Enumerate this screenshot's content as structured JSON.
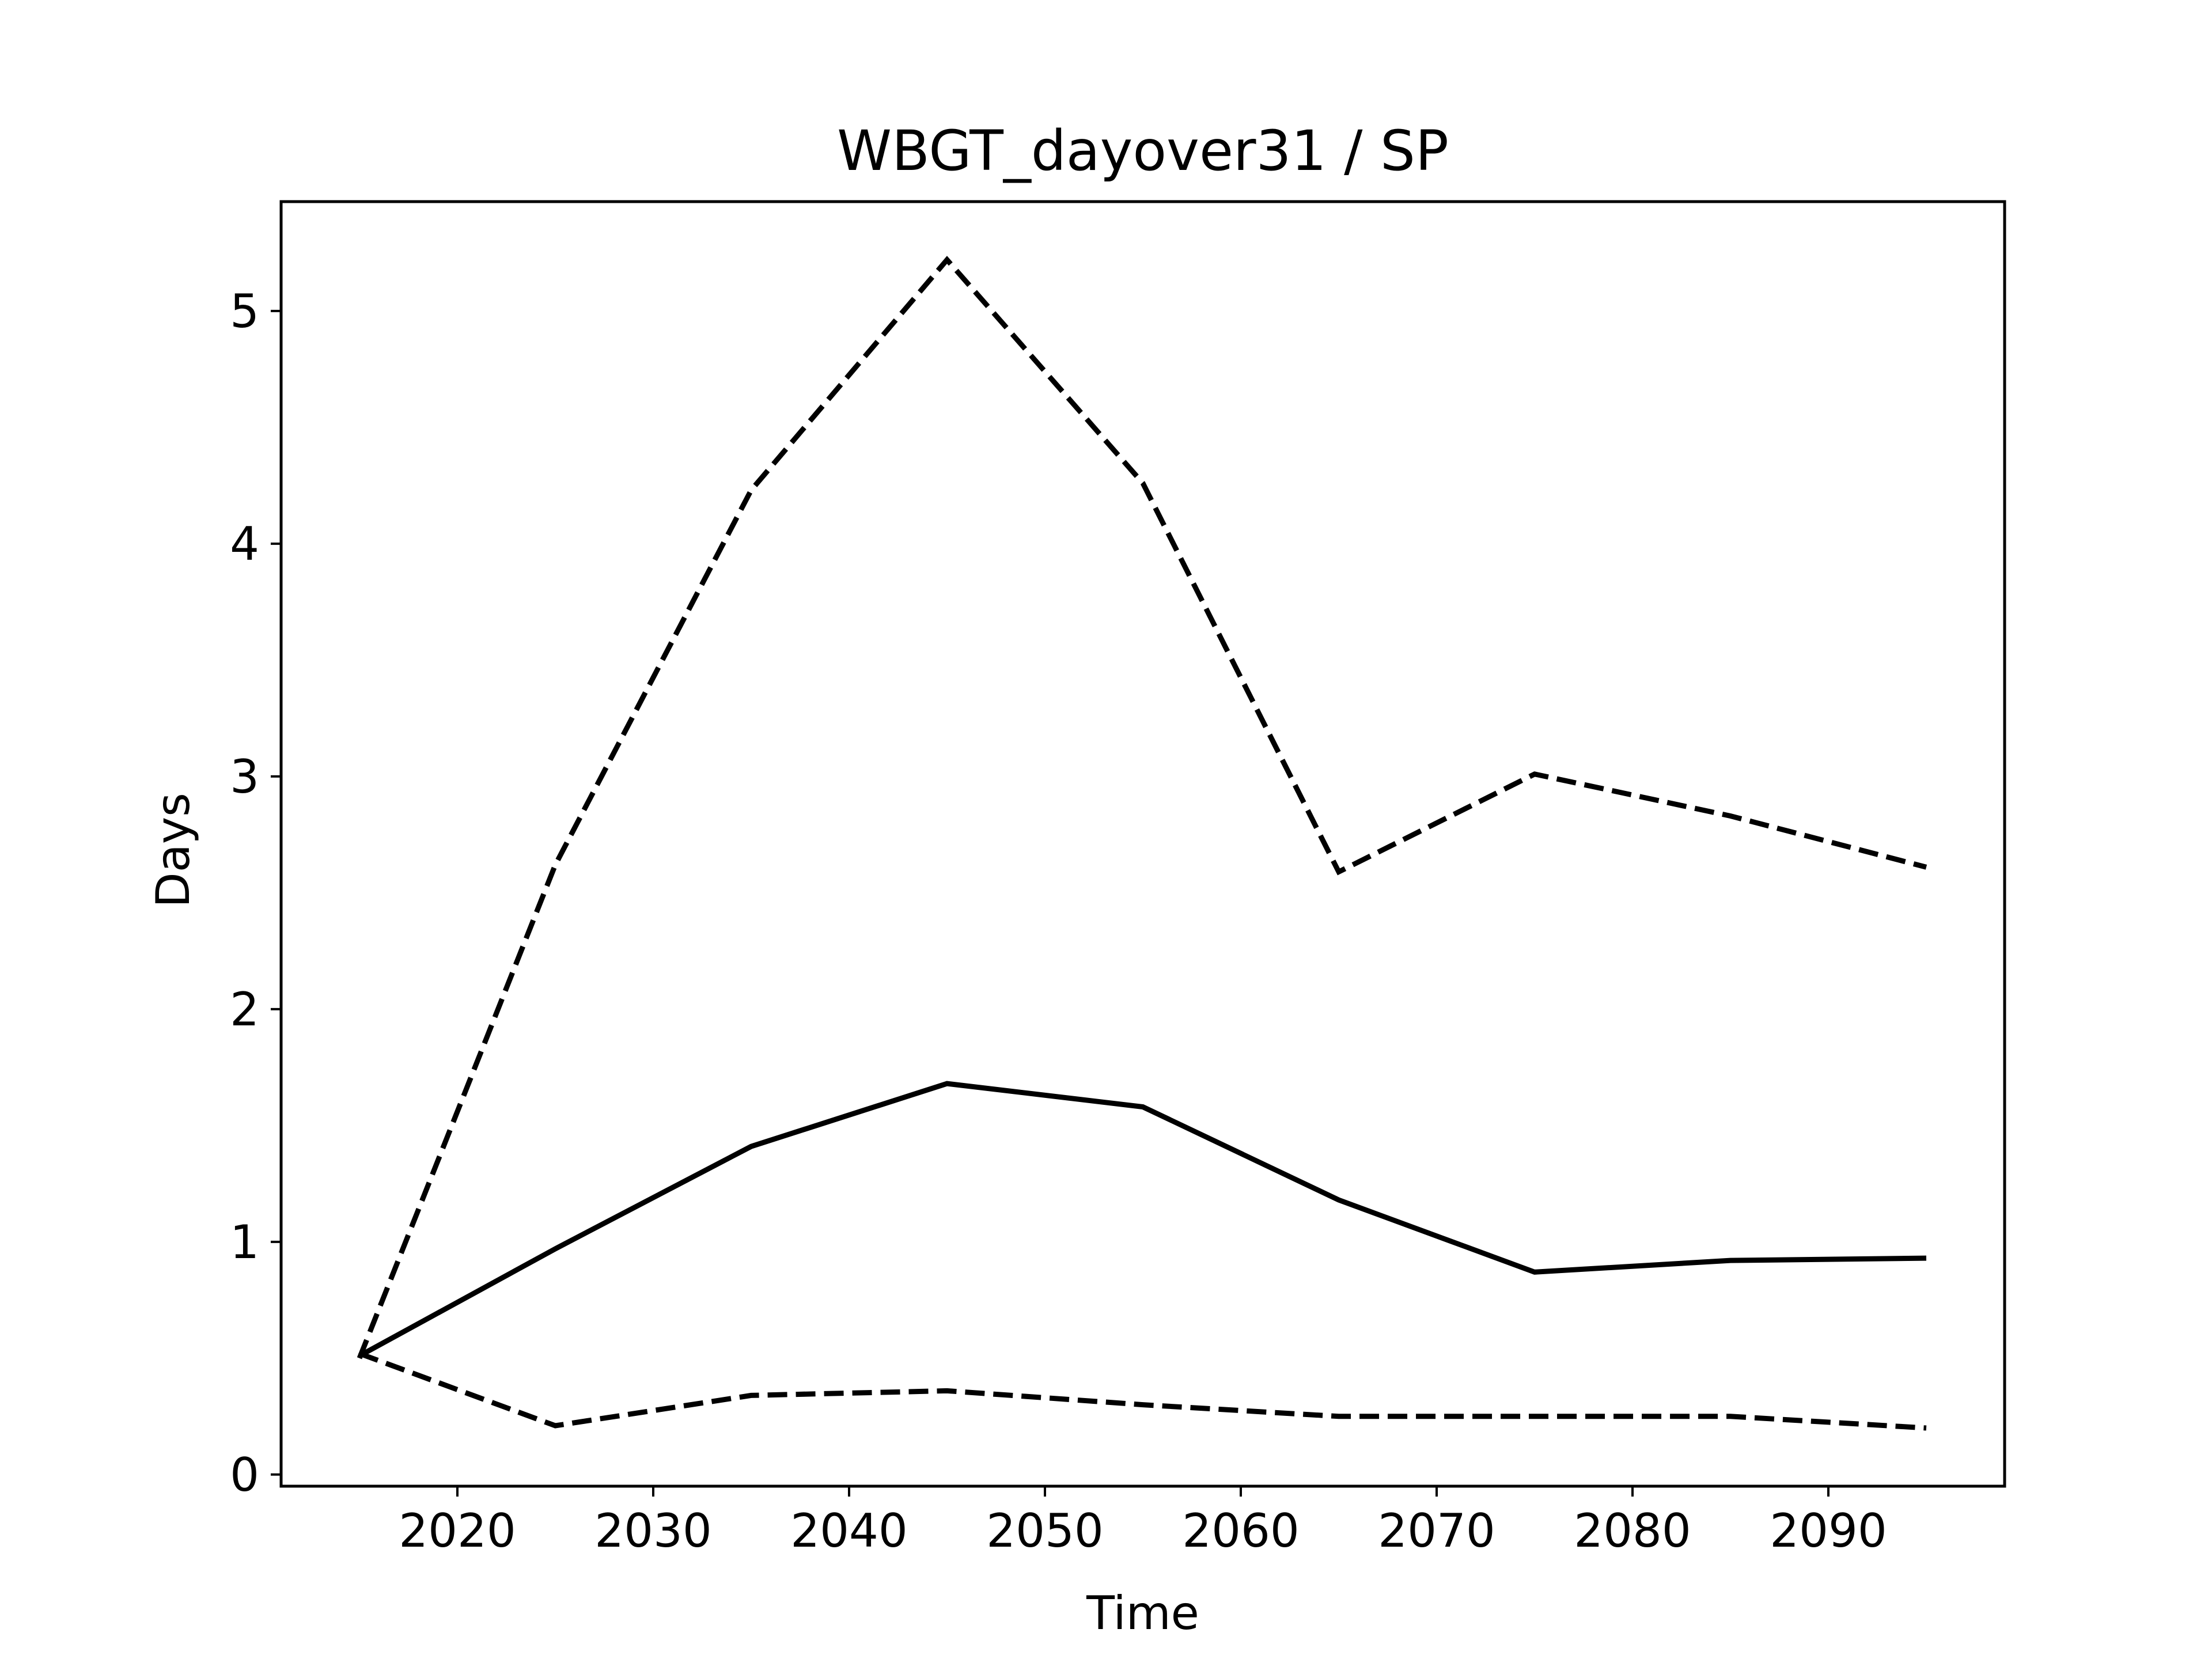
{
  "chart_data": {
    "type": "line",
    "title": "WBGT_dayover31 / SP",
    "xlabel": "Time",
    "ylabel": "Days",
    "xlim": [
      2011,
      2099
    ],
    "ylim": [
      -0.05,
      5.47
    ],
    "xticks": [
      2020,
      2030,
      2040,
      2050,
      2060,
      2070,
      2080,
      2090
    ],
    "yticks": [
      0,
      1,
      2,
      3,
      4,
      5
    ],
    "grid": false,
    "legend": "none",
    "x": [
      2015,
      2025,
      2035,
      2045,
      2055,
      2065,
      2075,
      2085,
      2095
    ],
    "series": [
      {
        "style": "dashed",
        "color": "#000000",
        "values": [
          0.5,
          2.62,
          4.23,
          5.22,
          4.26,
          2.59,
          3.01,
          2.83,
          2.61
        ]
      },
      {
        "style": "solid",
        "color": "#000000",
        "values": [
          0.51,
          0.97,
          1.41,
          1.68,
          1.58,
          1.18,
          0.87,
          0.92,
          0.93
        ]
      },
      {
        "style": "dashed",
        "color": "#000000",
        "values": [
          0.52,
          0.21,
          0.34,
          0.36,
          0.3,
          0.25,
          0.25,
          0.25,
          0.2
        ]
      }
    ]
  }
}
